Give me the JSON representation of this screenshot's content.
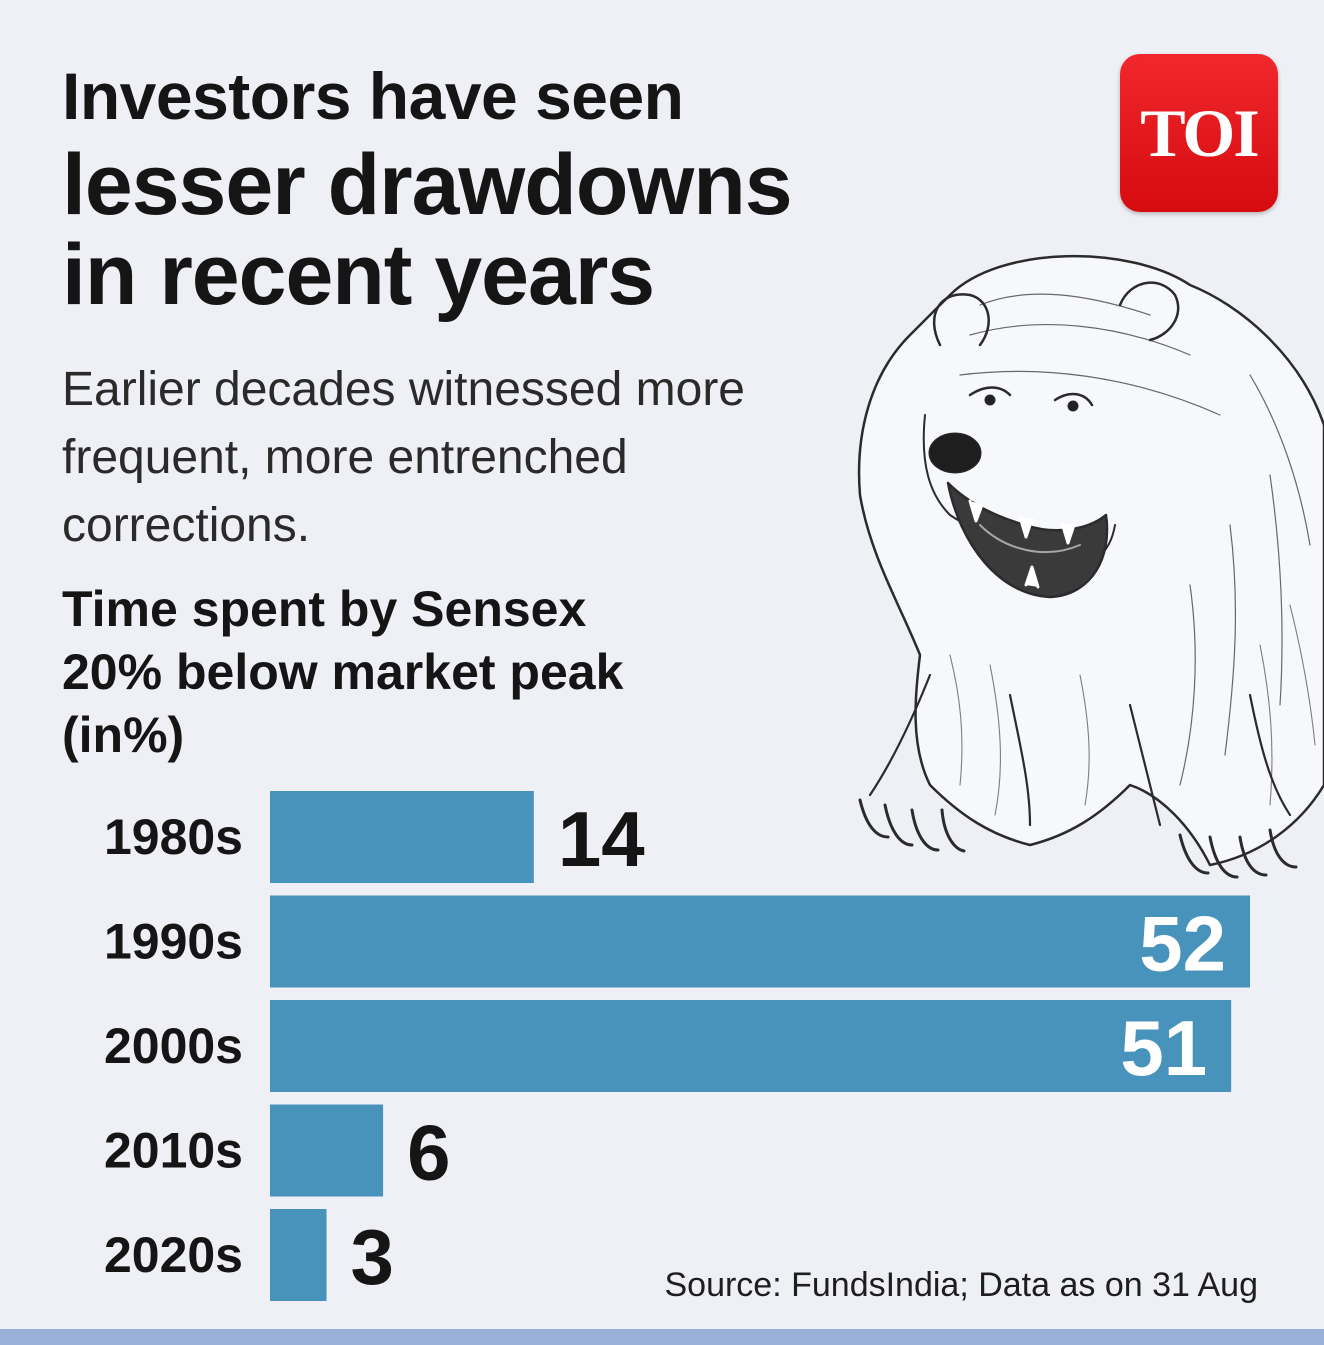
{
  "headline": {
    "line1": "Investors have seen",
    "line2": "lesser drawdowns",
    "line3": "in recent years"
  },
  "subhead": "Earlier decades witnessed more frequent, more entrenched corrections.",
  "logo": {
    "text": "TOI",
    "color": "#e3161b"
  },
  "illustration": {
    "icon": "bear-icon"
  },
  "source": "Source: FundsIndia; Data as on 31 Aug",
  "colors": {
    "bar": "#4893bb",
    "background": "#eef0f5",
    "bottom_band": "#9bb0d8"
  },
  "chart_data": {
    "type": "bar",
    "orientation": "horizontal",
    "title": "Time spent by Sensex 20% below market peak (in%)",
    "categories": [
      "1980s",
      "1990s",
      "2000s",
      "2010s",
      "2020s"
    ],
    "values": [
      14,
      52,
      51,
      6,
      3
    ],
    "xlim": [
      0,
      52
    ],
    "grid": false,
    "legend": "none",
    "data_labels": true
  }
}
